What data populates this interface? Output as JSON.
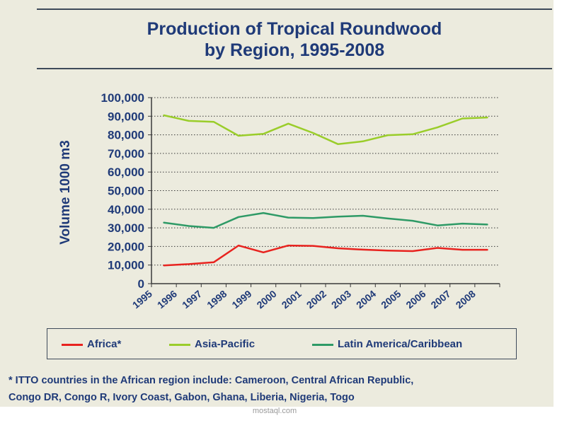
{
  "title_line1": "Production of Tropical Roundwood",
  "title_line2": "by Region, 1995-2008",
  "footnote_line1": "* ITTO countries in the African region include: Cameroon, Central African Republic,",
  "footnote_line2": "Congo DR, Congo R, Ivory Coast, Gabon, Ghana, Liberia, Nigeria, Togo",
  "watermark": "mostaql.com",
  "chart_data": {
    "type": "line",
    "title": "Production of Tropical Roundwood by Region, 1995-2008",
    "xlabel": "",
    "ylabel": "Volume 1000 m3",
    "ylim": [
      0,
      100000
    ],
    "yticks": [
      0,
      10000,
      20000,
      30000,
      40000,
      50000,
      60000,
      70000,
      80000,
      90000,
      100000
    ],
    "ytick_labels": [
      "0",
      "10,000",
      "20,000",
      "30,000",
      "40,000",
      "50,000",
      "60,000",
      "70,000",
      "80,000",
      "90,000",
      "100,000"
    ],
    "grid": "horizontal dotted",
    "legend_position": "bottom",
    "categories": [
      "1995",
      "1996",
      "1997",
      "1998",
      "1999",
      "2000",
      "2001",
      "2002",
      "2003",
      "2004",
      "2005",
      "2006",
      "2007",
      "2008"
    ],
    "series": [
      {
        "name": "Africa*",
        "color": "#e8231f",
        "values": [
          9800,
          10500,
          11500,
          20500,
          16800,
          20500,
          20300,
          19000,
          18300,
          17800,
          17500,
          19200,
          18200,
          18200
        ]
      },
      {
        "name": "Asia-Pacific",
        "color": "#9acd2a",
        "values": [
          90500,
          87500,
          87000,
          79500,
          80500,
          86000,
          81000,
          75000,
          76500,
          79800,
          80300,
          84000,
          88800,
          89300
        ]
      },
      {
        "name": "Latin America/Caribbean",
        "color": "#2e9a66",
        "values": [
          32800,
          31000,
          30000,
          35800,
          38000,
          35500,
          35300,
          36000,
          36500,
          35000,
          33800,
          31300,
          32300,
          31800
        ]
      }
    ]
  }
}
